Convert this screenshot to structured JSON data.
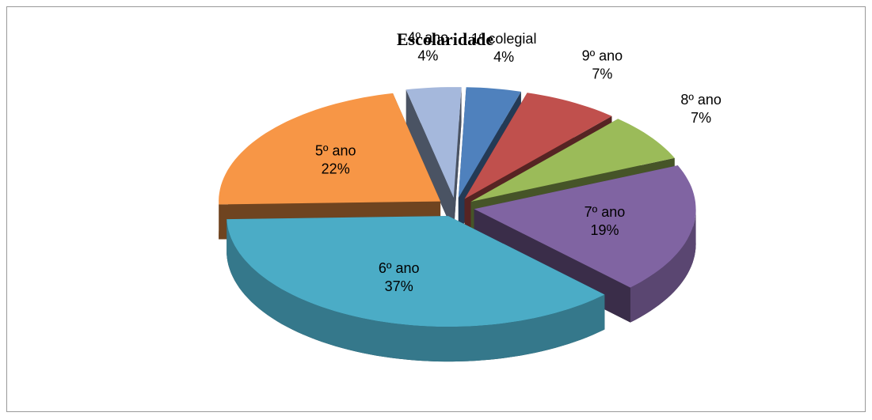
{
  "chart_data": {
    "type": "pie",
    "title": "Escolaridade",
    "categories": [
      "1º colegial",
      "9º ano",
      "8º ano",
      "7º ano",
      "6º ano",
      "5º ano",
      "4º ano"
    ],
    "values": [
      4,
      7,
      7,
      19,
      37,
      22,
      4
    ],
    "value_labels": [
      "4%",
      "7%",
      "7%",
      "19%",
      "37%",
      "22%",
      "4%"
    ],
    "colors": [
      "#4f81bd",
      "#c0504d",
      "#9bbb59",
      "#8064a2",
      "#4bacc6",
      "#f79646",
      "#a5b8dc"
    ]
  }
}
